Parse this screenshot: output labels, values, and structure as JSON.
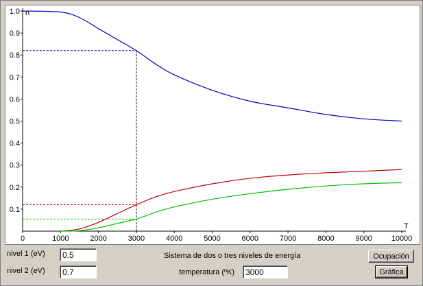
{
  "panel": {
    "title": "Sistema de dos o tres niveles de energía",
    "nivel1_label": "nivel 1 (eV)",
    "nivel1_value": "0.5",
    "nivel2_label": "nivel 2 (eV)",
    "nivel2_value": "0.7",
    "temperature_label": "temperatura (ºK)",
    "temperature_value": "3000",
    "ocupacion_button": "Ocupación",
    "grafica_button": "Gráfica"
  },
  "chart_data": {
    "type": "line",
    "ylabel": "n",
    "xlabel": "T",
    "xlim": [
      0,
      10000
    ],
    "ylim": [
      0,
      1.0
    ],
    "x_ticks": [
      0,
      1000,
      2000,
      3000,
      4000,
      5000,
      6000,
      7000,
      8000,
      9000,
      10000
    ],
    "y_ticks": [
      0.1,
      0.2,
      0.3,
      0.4,
      0.5,
      0.6,
      0.7,
      0.8,
      0.9,
      1.0
    ],
    "y_tick_labels": [
      "0.1",
      "0.2",
      "0.3",
      "0.4",
      "0.5",
      "0.6",
      "0.7",
      "0.8",
      "0.9",
      "1.0"
    ],
    "grid": false,
    "series": [
      {
        "color": "#0000c0",
        "x": [
          0,
          1000,
          1500,
          2000,
          2500,
          3000,
          3500,
          4000,
          5000,
          6000,
          7000,
          8000,
          9000,
          10000
        ],
        "values": [
          1.0,
          0.995,
          0.97,
          0.92,
          0.87,
          0.82,
          0.76,
          0.71,
          0.64,
          0.59,
          0.56,
          0.53,
          0.51,
          0.5
        ]
      },
      {
        "color": "#c00000",
        "x": [
          1000,
          1500,
          2000,
          2500,
          3000,
          3500,
          4000,
          5000,
          6000,
          7000,
          8000,
          9000,
          10000
        ],
        "values": [
          0.0,
          0.01,
          0.04,
          0.08,
          0.12,
          0.155,
          0.18,
          0.215,
          0.24,
          0.255,
          0.265,
          0.272,
          0.28
        ]
      },
      {
        "color": "#00c000",
        "x": [
          1000,
          1500,
          2000,
          2500,
          3000,
          3500,
          4000,
          5000,
          6000,
          7000,
          8000,
          9000,
          10000
        ],
        "values": [
          0.0,
          0.002,
          0.015,
          0.035,
          0.055,
          0.085,
          0.11,
          0.145,
          0.17,
          0.19,
          0.205,
          0.215,
          0.22
        ]
      }
    ],
    "marker_x": 3000,
    "marker_values": [
      0.82,
      0.12,
      0.055
    ]
  }
}
